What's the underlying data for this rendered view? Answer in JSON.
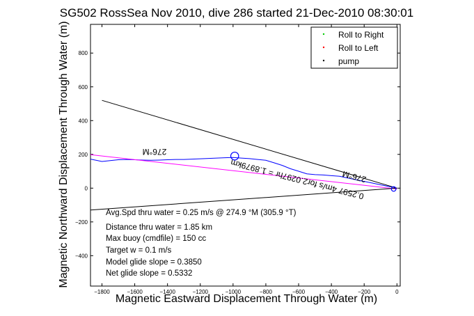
{
  "chart_data": {
    "type": "line",
    "title": "SG502 RossSea Nov 2010, dive 286 started 21-Dec-2010 08:30:01",
    "xlabel": "Magnetic Eastward Displacement Through Water (m)",
    "ylabel": "Magnetic Northward Displacement Through Water (m)",
    "xlim": [
      -1870,
      20
    ],
    "ylim": [
      -580,
      970
    ],
    "xticks": [
      -1800,
      -1600,
      -1400,
      -1200,
      -1000,
      -800,
      -600,
      -400,
      -200,
      0
    ],
    "yticks": [
      -400,
      -200,
      0,
      200,
      400,
      600,
      800
    ],
    "grid": false,
    "legend": {
      "position": "top-right",
      "entries": [
        {
          "label": "Roll to Right",
          "color": "#00cc00"
        },
        {
          "label": "Roll to Left",
          "color": "#ff0000"
        },
        {
          "label": "pump",
          "color": "#000000"
        }
      ]
    },
    "series": [
      {
        "color": "#0000ff",
        "x": [
          -1870,
          -1800,
          -1750,
          -1700,
          -1650,
          -1600,
          -1550,
          -1500,
          -1450,
          -1400,
          -1350,
          -1300,
          -1250,
          -1200,
          -1150,
          -1100,
          -1050,
          -1000,
          -950,
          -900,
          -850,
          -800,
          -750,
          -700,
          -650,
          -600,
          -550,
          -500,
          -450,
          -400,
          -350,
          -300,
          -250,
          -200,
          -150,
          -100,
          -50,
          -20,
          0
        ],
        "y": [
          172,
          158,
          163,
          168,
          170,
          168,
          166,
          165,
          166,
          168,
          170,
          170,
          172,
          174,
          176,
          178,
          180,
          182,
          178,
          175,
          170,
          165,
          150,
          135,
          115,
          100,
          85,
          80,
          78,
          74,
          70,
          60,
          50,
          40,
          30,
          20,
          10,
          5,
          0
        ]
      },
      {
        "color": "#ff00ff",
        "x": [
          -1870,
          0
        ],
        "y": [
          198,
          -5
        ]
      },
      {
        "color": "#000000",
        "x": [
          -1870,
          0
        ],
        "y": [
          -130,
          0
        ]
      },
      {
        "color": "#000000",
        "x": [
          -1800,
          0
        ],
        "y": [
          520,
          0
        ]
      }
    ],
    "annotations": [
      {
        "text": "276°M",
        "x": -1500,
        "y": 200
      },
      {
        "text": "0.2597 4m/s for2.0297hr = 1.8979km",
        "x": -500,
        "y": 55
      },
      {
        "text": "276°M",
        "x": -250,
        "y": 60
      }
    ],
    "notes": [
      "Avg.Spd thru water =  0.25 m/s @ 274.9   °M (305.9 °T)",
      "Distance thru water =  1.85 km",
      "Max buoy (cmdfile) = 150 cc",
      "Target w = 0.1 m/s",
      "Model glide slope = 0.3850",
      "Net glide slope = 0.5332"
    ]
  }
}
